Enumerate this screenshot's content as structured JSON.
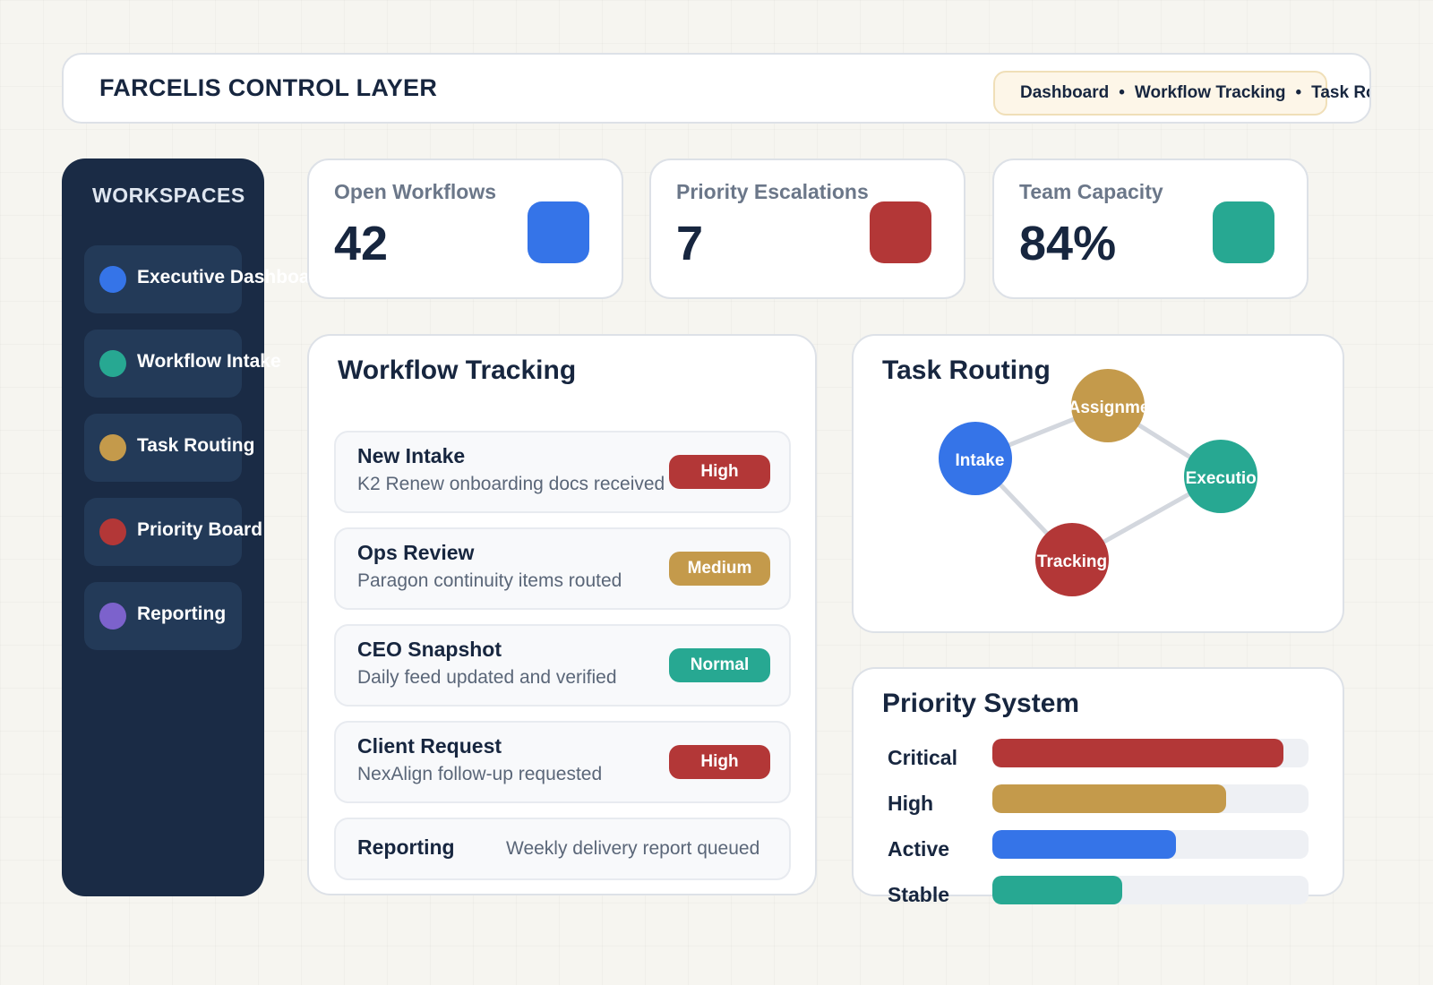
{
  "header": {
    "title": "FARCELIS CONTROL LAYER",
    "breadcrumb": [
      "Dashboard",
      "Workflow Tracking",
      "Task Routing"
    ],
    "separator": "•"
  },
  "sidebar": {
    "title": "WORKSPACES",
    "items": [
      {
        "label": "Executive Dashboard",
        "color": "#3574e8"
      },
      {
        "label": "Workflow Intake",
        "color": "#27a892"
      },
      {
        "label": "Task Routing",
        "color": "#c49a4b"
      },
      {
        "label": "Priority Board",
        "color": "#b33737"
      },
      {
        "label": "Reporting",
        "color": "#7c62cc"
      }
    ]
  },
  "stats": [
    {
      "label": "Open Workflows",
      "value": "42",
      "color": "#3574e8"
    },
    {
      "label": "Priority Escalations",
      "value": "7",
      "color": "#b33737"
    },
    {
      "label": "Team Capacity",
      "value": "84%",
      "color": "#27a892"
    }
  ],
  "workflow": {
    "title": "Workflow Tracking",
    "rows": [
      {
        "title": "New Intake",
        "subtitle": "K2 Renew onboarding docs received",
        "badge": "High",
        "badge_color": "#b33737"
      },
      {
        "title": "Ops Review",
        "subtitle": "Paragon continuity items routed",
        "badge": "Medium",
        "badge_color": "#c49a4b"
      },
      {
        "title": "CEO Snapshot",
        "subtitle": "Daily feed updated and verified",
        "badge": "Normal",
        "badge_color": "#27a892"
      },
      {
        "title": "Client Request",
        "subtitle": "NexAlign follow-up requested",
        "badge": "High",
        "badge_color": "#b33737"
      }
    ],
    "footer": {
      "title": "Reporting",
      "subtitle": "Weekly delivery report queued"
    }
  },
  "routing": {
    "title": "Task Routing",
    "nodes": [
      {
        "label": "Intake",
        "color": "#3574e8"
      },
      {
        "label": "Assignment",
        "color": "#c49a4b"
      },
      {
        "label": "Execution",
        "color": "#27a892"
      },
      {
        "label": "Tracking",
        "color": "#b33737"
      }
    ]
  },
  "priority": {
    "title": "Priority System",
    "levels": [
      {
        "label": "Critical",
        "fraction": 0.92,
        "color": "#b33737"
      },
      {
        "label": "High",
        "fraction": 0.74,
        "color": "#c49a4b"
      },
      {
        "label": "Active",
        "fraction": 0.58,
        "color": "#3574e8"
      },
      {
        "label": "Stable",
        "fraction": 0.41,
        "color": "#27a892"
      }
    ]
  }
}
